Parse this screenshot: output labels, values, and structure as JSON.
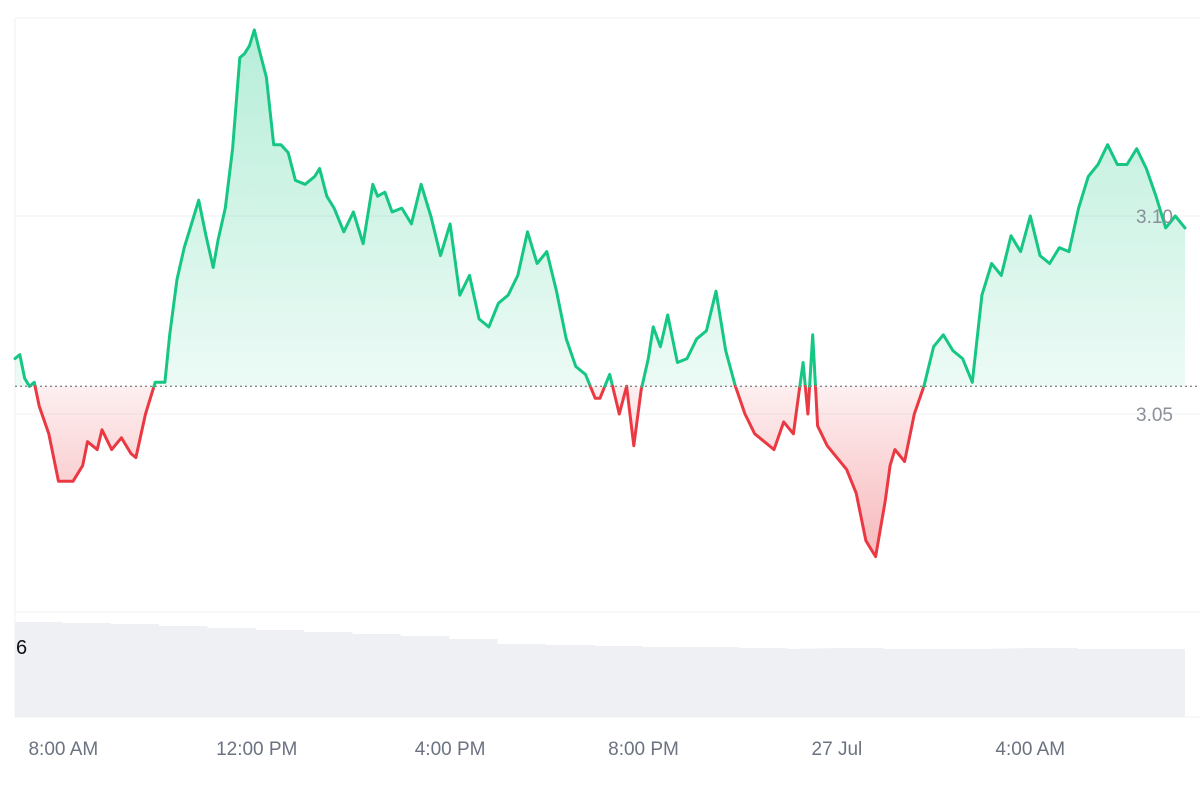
{
  "chart_data": {
    "type": "area",
    "baseline": 3.057,
    "ylim": [
      3.0,
      3.15
    ],
    "y_ticks": [
      {
        "value": 3.05,
        "label": "3.05"
      },
      {
        "value": 3.1,
        "label": "3.10"
      }
    ],
    "x_range": [
      7.0,
      31.2
    ],
    "x_ticks": [
      {
        "value": 8,
        "label": "8:00 AM"
      },
      {
        "value": 12,
        "label": "12:00 PM"
      },
      {
        "value": 16,
        "label": "4:00 PM"
      },
      {
        "value": 20,
        "label": "8:00 PM"
      },
      {
        "value": 24,
        "label": "27 Jul"
      },
      {
        "value": 28,
        "label": "4:00 AM"
      }
    ],
    "series": [
      {
        "x": [
          7.0,
          7.1,
          7.2,
          7.3,
          7.4,
          7.5,
          7.7,
          7.9,
          8.2,
          8.4,
          8.5,
          8.7,
          8.8,
          9.0,
          9.2,
          9.4,
          9.5,
          9.7,
          9.9,
          10.1,
          10.2,
          10.35,
          10.5,
          10.65,
          10.8,
          10.95,
          11.1,
          11.2,
          11.35,
          11.5,
          11.65,
          11.75,
          11.85,
          11.95,
          12.05,
          12.2,
          12.35,
          12.5,
          12.65,
          12.8,
          13.0,
          13.1,
          13.2,
          13.3,
          13.45,
          13.6,
          13.8,
          14.0,
          14.2,
          14.4,
          14.5,
          14.65,
          14.8,
          15.0,
          15.2,
          15.4,
          15.6,
          15.8,
          16.0,
          16.2,
          16.4,
          16.6,
          16.8,
          17.0,
          17.2,
          17.4,
          17.6,
          17.8,
          18.0,
          18.2,
          18.4,
          18.6,
          18.8,
          19.0,
          19.1,
          19.3,
          19.5,
          19.65,
          19.8,
          19.95,
          20.1,
          20.2,
          20.35,
          20.5,
          20.7,
          20.9,
          21.1,
          21.3,
          21.5,
          21.7,
          21.9,
          22.1,
          22.3,
          22.5,
          22.7,
          22.9,
          23.1,
          23.2,
          23.3,
          23.4,
          23.5,
          23.6,
          23.8,
          24.0,
          24.2,
          24.4,
          24.6,
          24.8,
          25.0,
          25.1,
          25.2,
          25.4,
          25.6,
          25.8,
          26.0,
          26.2,
          26.4,
          26.6,
          26.8,
          27.0,
          27.2,
          27.4,
          27.6,
          27.8,
          28.0,
          28.2,
          28.4,
          28.6,
          28.8,
          29.0,
          29.2,
          29.4,
          29.6,
          29.8,
          30.0,
          30.2,
          30.4,
          30.6,
          30.8,
          31.0,
          31.2
        ],
        "y": [
          3.064,
          3.065,
          3.059,
          3.057,
          3.058,
          3.052,
          3.045,
          3.033,
          3.033,
          3.037,
          3.043,
          3.041,
          3.046,
          3.041,
          3.044,
          3.04,
          3.039,
          3.05,
          3.058,
          3.058,
          3.07,
          3.084,
          3.092,
          3.098,
          3.104,
          3.095,
          3.087,
          3.094,
          3.102,
          3.117,
          3.14,
          3.141,
          3.143,
          3.147,
          3.142,
          3.135,
          3.118,
          3.118,
          3.116,
          3.109,
          3.108,
          3.109,
          3.11,
          3.112,
          3.105,
          3.102,
          3.096,
          3.101,
          3.093,
          3.108,
          3.105,
          3.106,
          3.101,
          3.102,
          3.098,
          3.108,
          3.1,
          3.09,
          3.098,
          3.08,
          3.085,
          3.074,
          3.072,
          3.078,
          3.08,
          3.085,
          3.096,
          3.088,
          3.091,
          3.081,
          3.069,
          3.062,
          3.06,
          3.054,
          3.054,
          3.06,
          3.05,
          3.057,
          3.042,
          3.056,
          3.064,
          3.072,
          3.067,
          3.075,
          3.063,
          3.064,
          3.069,
          3.071,
          3.081,
          3.066,
          3.057,
          3.05,
          3.045,
          3.043,
          3.041,
          3.048,
          3.045,
          3.054,
          3.063,
          3.05,
          3.07,
          3.047,
          3.042,
          3.039,
          3.036,
          3.03,
          3.018,
          3.014,
          3.028,
          3.037,
          3.041,
          3.038,
          3.05,
          3.057,
          3.067,
          3.07,
          3.066,
          3.064,
          3.058,
          3.08,
          3.088,
          3.085,
          3.095,
          3.091,
          3.1,
          3.09,
          3.088,
          3.092,
          3.091,
          3.102,
          3.11,
          3.113,
          3.118,
          3.113,
          3.113,
          3.117,
          3.112,
          3.105,
          3.097,
          3.1,
          3.097
        ]
      }
    ],
    "colors": {
      "up_line": "#16c784",
      "down_line": "#ea3943",
      "up_fill": "#16c784",
      "down_fill": "#ea3943",
      "grid": "#eef0f3",
      "baseline": "#888888",
      "volume": "#eef0f4"
    },
    "volume": {
      "label": "6",
      "x": [
        7.0,
        8.0,
        9.0,
        10.0,
        11.0,
        12.0,
        13.0,
        14.0,
        15.0,
        16.0,
        17.0,
        18.0,
        19.0,
        20.0,
        21.0,
        22.0,
        23.0,
        24.0,
        25.0,
        26.0,
        27.0,
        28.0,
        29.0,
        30.0,
        31.2
      ],
      "values": [
        0.95,
        0.94,
        0.93,
        0.91,
        0.89,
        0.87,
        0.85,
        0.83,
        0.81,
        0.78,
        0.73,
        0.72,
        0.71,
        0.7,
        0.7,
        0.69,
        0.68,
        0.69,
        0.68,
        0.68,
        0.68,
        0.69,
        0.68,
        0.68,
        0.68
      ]
    }
  }
}
